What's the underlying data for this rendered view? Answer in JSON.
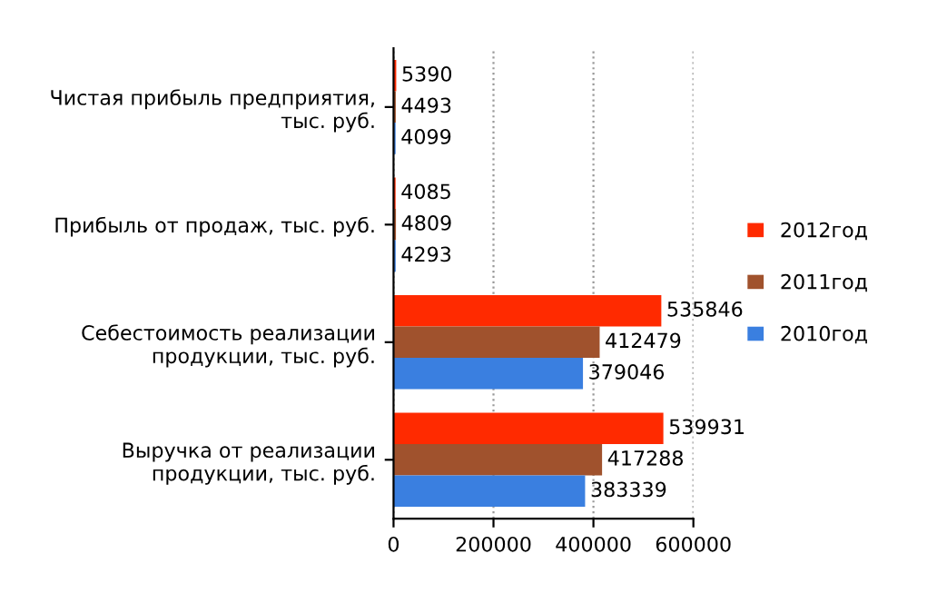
{
  "chart_data": {
    "type": "bar",
    "orientation": "horizontal",
    "categories": [
      "Чистая прибыль предприятия, тыс. руб.",
      "Прибыль от продаж, тыс. руб.",
      "Себестоимость реализации продукции, тыс. руб.",
      "Выручка от реализации продукции, тыс. руб."
    ],
    "series": [
      {
        "name": "2012год",
        "color": "#ff2a00",
        "values": [
          5390,
          4085,
          535846,
          539931
        ]
      },
      {
        "name": "2011год",
        "color": "#a0522d",
        "values": [
          4493,
          4809,
          412479,
          417288
        ]
      },
      {
        "name": "2010год",
        "color": "#3a7fe0",
        "values": [
          4099,
          4293,
          379046,
          383339
        ]
      }
    ],
    "xlim": [
      0,
      600000
    ],
    "xticks": [
      0,
      200000,
      400000,
      600000
    ],
    "grid": "x",
    "legend": "right",
    "data_labels": true
  }
}
